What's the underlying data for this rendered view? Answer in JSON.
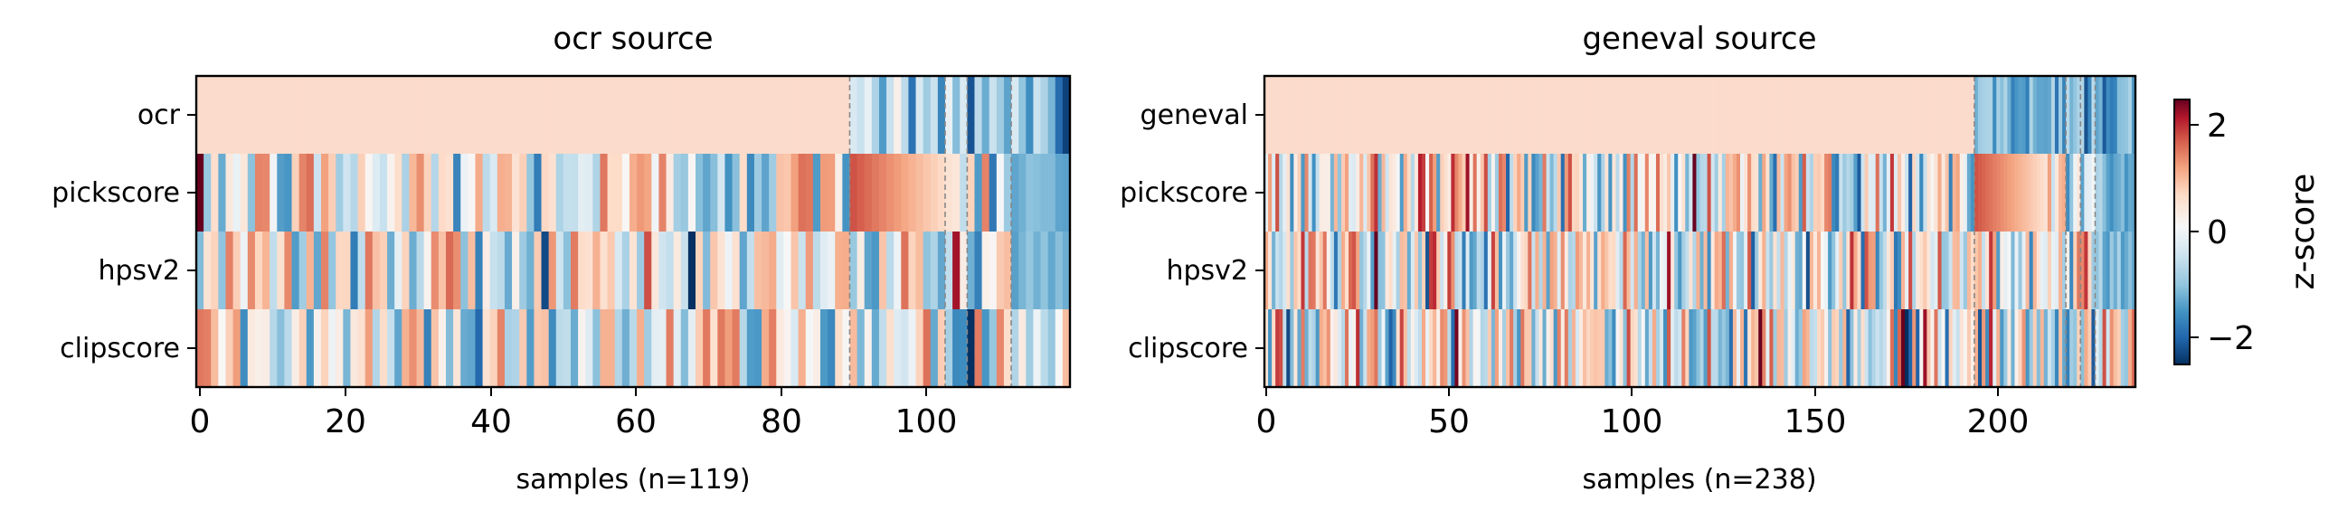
{
  "chart_data": [
    {
      "type": "heatmap",
      "title": "ocr source",
      "xlabel": "samples (n=119)",
      "ylabel": "",
      "n_samples": 119,
      "rows": [
        "ocr",
        "pickscore",
        "hpsv2",
        "clipscore"
      ],
      "xticks": [
        0,
        20,
        40,
        60,
        80,
        100
      ],
      "xlim": [
        0,
        119
      ],
      "group_boundaries": [
        89,
        102,
        105,
        111
      ],
      "sort_row": "ocr",
      "ocr_tail": [
        -0.2,
        -0.3,
        -0.1,
        -0.5,
        -1.2,
        -0.3,
        0.1,
        -0.4,
        -1.8,
        -0.2,
        -0.6,
        -0.3,
        -1.5,
        -0.1,
        -0.8,
        -0.2,
        -2.2,
        -0.4,
        -1.0,
        -0.3,
        -0.6,
        -1.1,
        -0.2,
        -0.7,
        -1.4,
        -0.3,
        -0.5,
        -0.9,
        -1.9,
        -2.4
      ],
      "zlim": [
        -2.6,
        2.4
      ],
      "colormap": "RdBu_r",
      "colorbar": {
        "label": "z-score",
        "ticks": [
          -2,
          0,
          2
        ]
      }
    },
    {
      "type": "heatmap",
      "title": "geneval source",
      "xlabel": "samples (n=238)",
      "ylabel": "",
      "n_samples": 238,
      "rows": [
        "geneval",
        "pickscore",
        "hpsv2",
        "clipscore"
      ],
      "xticks": [
        0,
        50,
        100,
        150,
        200
      ],
      "xlim": [
        0,
        238
      ],
      "group_boundaries": [
        194,
        219,
        223,
        227
      ],
      "sort_row": "geneval",
      "zlim": [
        -2.6,
        2.4
      ],
      "colormap": "RdBu_r",
      "colorbar": {
        "label": "z-score",
        "ticks": [
          -2,
          0,
          2
        ]
      }
    }
  ],
  "tick_text": {
    "p0": [
      "0",
      "20",
      "40",
      "60",
      "80",
      "100"
    ],
    "p1": [
      "0",
      "50",
      "100",
      "150",
      "200"
    ],
    "cb": [
      "2",
      "0",
      "−2"
    ]
  },
  "colors": {
    "high": "#67001f",
    "mid": "#f7f7f7",
    "low": "#053061",
    "flat_top_row": "#fbdbcb",
    "boundary_line": "#888888"
  }
}
